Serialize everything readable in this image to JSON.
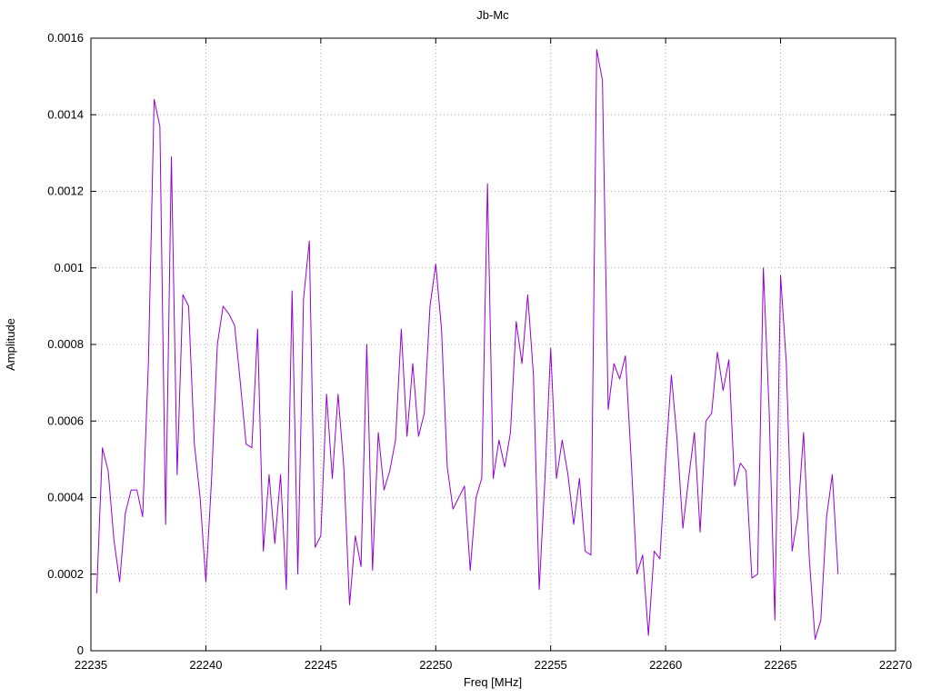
{
  "page": {
    "background_color": "#ffffff"
  },
  "chart_data": {
    "type": "line",
    "title": "Jb-Mc",
    "xlabel": "Freq [MHz]",
    "ylabel": "Amplitude",
    "xlim": [
      22235,
      22270
    ],
    "ylim": [
      0,
      0.0016
    ],
    "grid": true,
    "legend": "none",
    "line_color": "#9400d3",
    "grid_color": "#9a9a9a",
    "border_color": "#000000",
    "x_ticks": [
      {
        "v": 22235,
        "label": "22235"
      },
      {
        "v": 22240,
        "label": "22240"
      },
      {
        "v": 22245,
        "label": "22245"
      },
      {
        "v": 22250,
        "label": "22250"
      },
      {
        "v": 22255,
        "label": "22255"
      },
      {
        "v": 22260,
        "label": "22260"
      },
      {
        "v": 22265,
        "label": "22265"
      },
      {
        "v": 22270,
        "label": "22270"
      }
    ],
    "y_ticks": [
      {
        "v": 0.0,
        "label": "0"
      },
      {
        "v": 0.0002,
        "label": "0.0002"
      },
      {
        "v": 0.0004,
        "label": "0.0004"
      },
      {
        "v": 0.0006,
        "label": "0.0006"
      },
      {
        "v": 0.0008,
        "label": "0.0008"
      },
      {
        "v": 0.001,
        "label": "0.001"
      },
      {
        "v": 0.0012,
        "label": "0.0012"
      },
      {
        "v": 0.0014,
        "label": "0.0014"
      },
      {
        "v": 0.0016,
        "label": "0.0016"
      }
    ],
    "series": [
      {
        "name": "Jb-Mc",
        "points": [
          [
            22235.25,
            0.00015
          ],
          [
            22235.5,
            0.00053
          ],
          [
            22235.75,
            0.00047
          ],
          [
            22236.0,
            0.00029
          ],
          [
            22236.25,
            0.00018
          ],
          [
            22236.5,
            0.00036
          ],
          [
            22236.75,
            0.00042
          ],
          [
            22237.0,
            0.00042
          ],
          [
            22237.25,
            0.00035
          ],
          [
            22237.5,
            0.00075
          ],
          [
            22237.75,
            0.00144
          ],
          [
            22238.0,
            0.00137
          ],
          [
            22238.25,
            0.00033
          ],
          [
            22238.5,
            0.00129
          ],
          [
            22238.75,
            0.00046
          ],
          [
            22239.0,
            0.00093
          ],
          [
            22239.25,
            0.0009
          ],
          [
            22239.5,
            0.00054
          ],
          [
            22239.75,
            0.0004
          ],
          [
            22240.0,
            0.00018
          ],
          [
            22240.25,
            0.00045
          ],
          [
            22240.5,
            0.0008
          ],
          [
            22240.75,
            0.0009
          ],
          [
            22241.0,
            0.00088
          ],
          [
            22241.25,
            0.00085
          ],
          [
            22241.5,
            0.0007
          ],
          [
            22241.75,
            0.00054
          ],
          [
            22242.0,
            0.00053
          ],
          [
            22242.25,
            0.00084
          ],
          [
            22242.5,
            0.00026
          ],
          [
            22242.75,
            0.00046
          ],
          [
            22243.0,
            0.00028
          ],
          [
            22243.25,
            0.00046
          ],
          [
            22243.5,
            0.00016
          ],
          [
            22243.75,
            0.00094
          ],
          [
            22244.0,
            0.0002
          ],
          [
            22244.25,
            0.00092
          ],
          [
            22244.5,
            0.00107
          ],
          [
            22244.75,
            0.00027
          ],
          [
            22245.0,
            0.0003
          ],
          [
            22245.25,
            0.00067
          ],
          [
            22245.5,
            0.00045
          ],
          [
            22245.75,
            0.00067
          ],
          [
            22246.0,
            0.00048
          ],
          [
            22246.25,
            0.00012
          ],
          [
            22246.5,
            0.0003
          ],
          [
            22246.75,
            0.00022
          ],
          [
            22247.0,
            0.0008
          ],
          [
            22247.25,
            0.00021
          ],
          [
            22247.5,
            0.00057
          ],
          [
            22247.75,
            0.00042
          ],
          [
            22248.0,
            0.00047
          ],
          [
            22248.25,
            0.00055
          ],
          [
            22248.5,
            0.00084
          ],
          [
            22248.75,
            0.00056
          ],
          [
            22249.0,
            0.00075
          ],
          [
            22249.25,
            0.00056
          ],
          [
            22249.5,
            0.00062
          ],
          [
            22249.75,
            0.0009
          ],
          [
            22250.0,
            0.00101
          ],
          [
            22250.25,
            0.00084
          ],
          [
            22250.5,
            0.00048
          ],
          [
            22250.75,
            0.00037
          ],
          [
            22251.0,
            0.0004
          ],
          [
            22251.25,
            0.00043
          ],
          [
            22251.5,
            0.00021
          ],
          [
            22251.75,
            0.0004
          ],
          [
            22252.0,
            0.00045
          ],
          [
            22252.25,
            0.00122
          ],
          [
            22252.5,
            0.00045
          ],
          [
            22252.75,
            0.00055
          ],
          [
            22253.0,
            0.00048
          ],
          [
            22253.25,
            0.00057
          ],
          [
            22253.5,
            0.00086
          ],
          [
            22253.75,
            0.00075
          ],
          [
            22254.0,
            0.00093
          ],
          [
            22254.25,
            0.00072
          ],
          [
            22254.5,
            0.00016
          ],
          [
            22254.75,
            0.00045
          ],
          [
            22255.0,
            0.00079
          ],
          [
            22255.25,
            0.00045
          ],
          [
            22255.5,
            0.00055
          ],
          [
            22255.75,
            0.00046
          ],
          [
            22256.0,
            0.00033
          ],
          [
            22256.25,
            0.00045
          ],
          [
            22256.5,
            0.00026
          ],
          [
            22256.75,
            0.00025
          ],
          [
            22257.0,
            0.00157
          ],
          [
            22257.25,
            0.00149
          ],
          [
            22257.5,
            0.00063
          ],
          [
            22257.75,
            0.00075
          ],
          [
            22258.0,
            0.00071
          ],
          [
            22258.25,
            0.00077
          ],
          [
            22258.5,
            0.0005
          ],
          [
            22258.75,
            0.0002
          ],
          [
            22259.0,
            0.00025
          ],
          [
            22259.25,
            4e-05
          ],
          [
            22259.5,
            0.00026
          ],
          [
            22259.75,
            0.00024
          ],
          [
            22260.0,
            0.0005
          ],
          [
            22260.25,
            0.00072
          ],
          [
            22260.5,
            0.00055
          ],
          [
            22260.75,
            0.00032
          ],
          [
            22261.0,
            0.00045
          ],
          [
            22261.25,
            0.00057
          ],
          [
            22261.5,
            0.00031
          ],
          [
            22261.75,
            0.0006
          ],
          [
            22262.0,
            0.00062
          ],
          [
            22262.25,
            0.00078
          ],
          [
            22262.5,
            0.00068
          ],
          [
            22262.75,
            0.00076
          ],
          [
            22263.0,
            0.00043
          ],
          [
            22263.25,
            0.00049
          ],
          [
            22263.5,
            0.00047
          ],
          [
            22263.75,
            0.00019
          ],
          [
            22264.0,
            0.0002
          ],
          [
            22264.25,
            0.001
          ],
          [
            22264.5,
            0.00063
          ],
          [
            22264.75,
            8e-05
          ],
          [
            22265.0,
            0.00098
          ],
          [
            22265.25,
            0.00075
          ],
          [
            22265.5,
            0.00026
          ],
          [
            22265.75,
            0.00035
          ],
          [
            22266.0,
            0.00057
          ],
          [
            22266.25,
            0.00024
          ],
          [
            22266.5,
            3e-05
          ],
          [
            22266.75,
            8e-05
          ],
          [
            22267.0,
            0.00035
          ],
          [
            22267.25,
            0.00046
          ],
          [
            22267.5,
            0.0002
          ]
        ]
      }
    ]
  }
}
